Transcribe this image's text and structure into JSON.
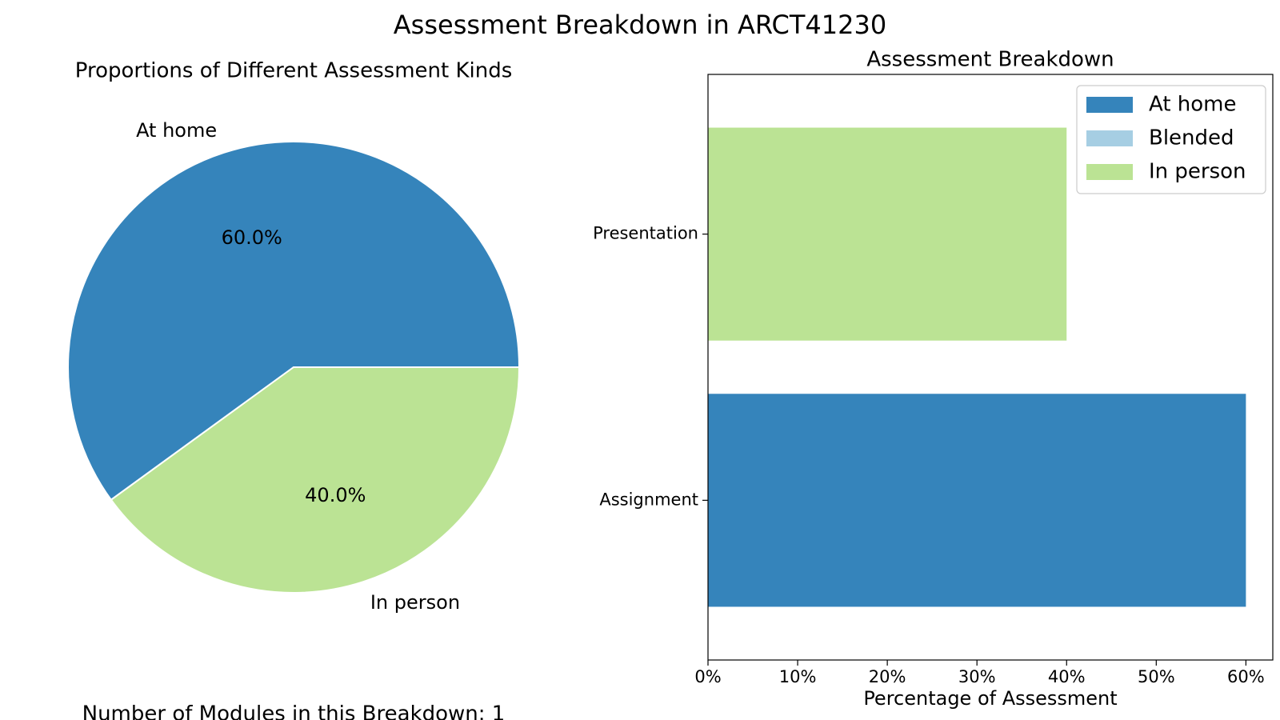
{
  "figure": {
    "suptitle": "Assessment Breakdown in ARCT41230",
    "footer_text": "Number of Modules in this Breakdown: 1"
  },
  "colors": {
    "at_home": "#3584bb",
    "blended": "#a6cee3",
    "in_person": "#bbe394",
    "background": "#ffffff",
    "axis": "#000000"
  },
  "chart_data": [
    {
      "type": "pie",
      "title": "Proportions of Different Assessment Kinds",
      "slices": [
        {
          "label": "At home",
          "value": 60.0,
          "pct_label": "60.0%",
          "color": "#3584bb"
        },
        {
          "label": "In person",
          "value": 40.0,
          "pct_label": "40.0%",
          "color": "#bbe394"
        }
      ],
      "start_angle_deg": 0,
      "direction": "counterclockwise"
    },
    {
      "type": "bar",
      "orientation": "horizontal",
      "stacked": true,
      "title": "Assessment Breakdown",
      "xlabel": "Percentage of Assessment",
      "ylabel": "",
      "categories": [
        "Assignment",
        "Presentation"
      ],
      "series": [
        {
          "name": "At home",
          "color": "#3584bb",
          "values": [
            60,
            0
          ]
        },
        {
          "name": "Blended",
          "color": "#a6cee3",
          "values": [
            0,
            0
          ]
        },
        {
          "name": "In person",
          "color": "#bbe394",
          "values": [
            0,
            40
          ]
        }
      ],
      "xlim": [
        0,
        63
      ],
      "xticks": [
        0,
        10,
        20,
        30,
        40,
        50,
        60
      ],
      "xtick_labels": [
        "0%",
        "10%",
        "20%",
        "30%",
        "40%",
        "50%",
        "60%"
      ],
      "grid": false,
      "legend_position": "top-right"
    }
  ]
}
